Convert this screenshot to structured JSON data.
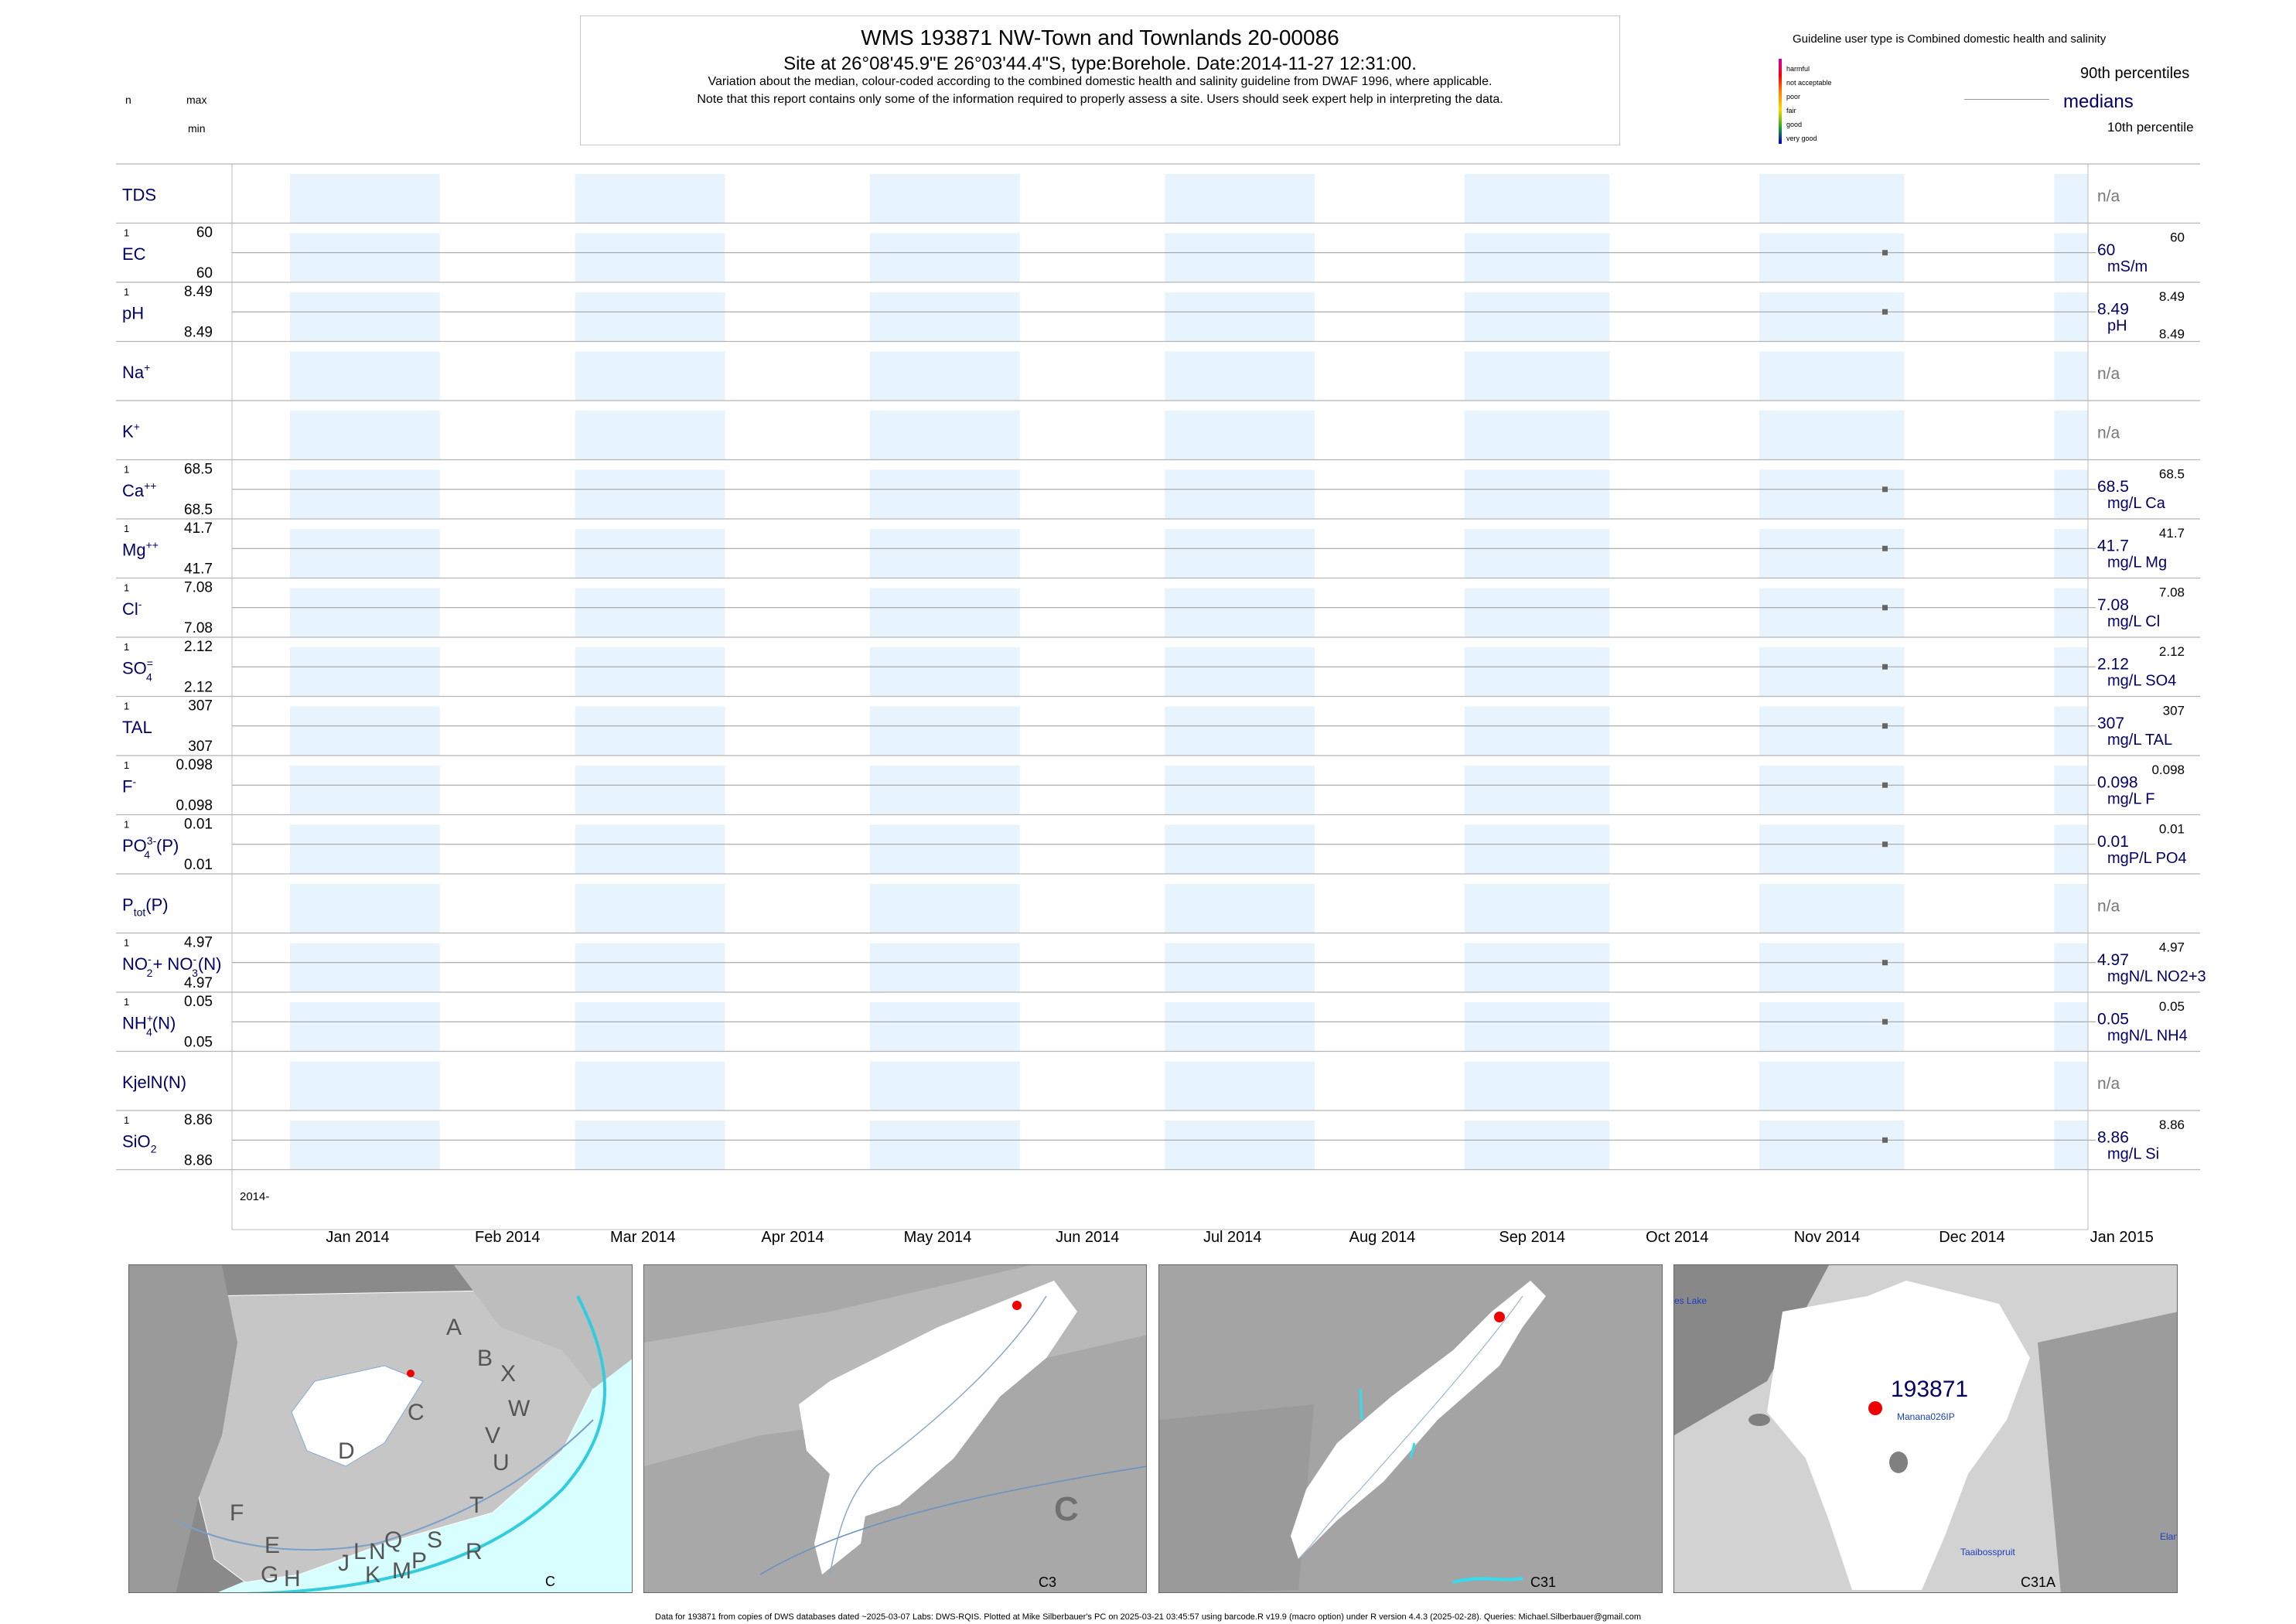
{
  "header": {
    "title": "WMS 193871  NW-Town and Townlands 20-00086",
    "subtitle": "Site at 26°08'45.9\"E 26°03'44.4\"S, type:Borehole. Date:2014-11-27 12:31:00.",
    "note1": "Variation about the median,  colour-coded according to the combined domestic health and salinity guideline from DWAF 1996, where applicable.",
    "note2": "Note that this report contains only some of the information required to properly assess a site. Users should seek expert help in interpreting the data."
  },
  "left_legend": {
    "n": "n",
    "max": "max",
    "min": "min"
  },
  "guideline": {
    "title": "Guideline user type is Combined domestic health and salinity",
    "levels": [
      {
        "label": "harmful",
        "color": "#cc00aa"
      },
      {
        "label": "not acceptable",
        "color": "#ff0000"
      },
      {
        "label": "poor",
        "color": "#ff8800"
      },
      {
        "label": "fair",
        "color": "#ffd700"
      },
      {
        "label": "good",
        "color": "#22aa22"
      },
      {
        "label": "very good",
        "color": "#0000cc"
      }
    ],
    "p90": "90th percentiles",
    "medians": "medians",
    "p10": "10th percentile"
  },
  "chart_data": {
    "type": "scatter",
    "sample_date": "2014-11-27",
    "x_axis": {
      "start_label": "2014-",
      "ticks": [
        "Jan 2014",
        "Feb 2014",
        "Mar 2014",
        "Apr 2014",
        "May 2014",
        "Jun 2014",
        "Jul 2014",
        "Aug 2014",
        "Sep 2014",
        "Oct 2014",
        "Nov 2014",
        "Dec 2014",
        "Jan 2015"
      ],
      "range": [
        "2013-12-20",
        "2015-01-08"
      ]
    },
    "rows": [
      {
        "name": "TDS",
        "html": "TDS",
        "n": "",
        "max": "",
        "min": "",
        "value": null,
        "median_label": "n/a",
        "unit": "",
        "p90": ""
      },
      {
        "name": "EC",
        "html": "EC",
        "n": "1",
        "max": "60",
        "min": "60",
        "value": 60,
        "median_label": "60",
        "unit": "mS/m",
        "p90": "60"
      },
      {
        "name": "pH",
        "html": "pH",
        "n": "1",
        "max": "8.49",
        "min": "8.49",
        "value": 8.49,
        "median_label": "8.49",
        "unit": "pH",
        "p90": "8.49",
        "p10": "8.49"
      },
      {
        "name": "Na+",
        "html": "Na<tspan font-size='14' dy='-9'>+</tspan>",
        "n": "",
        "max": "",
        "min": "",
        "value": null,
        "median_label": "n/a",
        "unit": "",
        "p90": ""
      },
      {
        "name": "K+",
        "html": "K<tspan font-size='14' dy='-9'>+</tspan>",
        "n": "",
        "max": "",
        "min": "",
        "value": null,
        "median_label": "n/a",
        "unit": "",
        "p90": ""
      },
      {
        "name": "Ca++",
        "html": "Ca<tspan font-size='14' dy='-9'>++</tspan>",
        "n": "1",
        "max": "68.5",
        "min": "68.5",
        "value": 68.5,
        "median_label": "68.5",
        "unit": "mg/L Ca",
        "p90": "68.5"
      },
      {
        "name": "Mg++",
        "html": "Mg<tspan font-size='14' dy='-9'>++</tspan>",
        "n": "1",
        "max": "41.7",
        "min": "41.7",
        "value": 41.7,
        "median_label": "41.7",
        "unit": "mg/L Mg",
        "p90": "41.7"
      },
      {
        "name": "Cl-",
        "html": "Cl<tspan font-size='14' dy='-9'>-</tspan>",
        "n": "1",
        "max": "7.08",
        "min": "7.08",
        "value": 7.08,
        "median_label": "7.08",
        "unit": "mg/L Cl",
        "p90": "7.08"
      },
      {
        "name": "SO4=",
        "html": "SO<tspan font-size='14' dy='-9'>=</tspan><tspan font-size='14' dx='-9' dy='18'>4</tspan>",
        "n": "1",
        "max": "2.12",
        "min": "2.12",
        "value": 2.12,
        "median_label": "2.12",
        "unit": "mg/L SO4",
        "p90": "2.12"
      },
      {
        "name": "TAL",
        "html": "TAL",
        "n": "1",
        "max": "307",
        "min": "307",
        "value": 307,
        "median_label": "307",
        "unit": "mg/L TAL",
        "p90": "307"
      },
      {
        "name": "F-",
        "html": "F<tspan font-size='14' dy='-9'>-</tspan>",
        "n": "1",
        "max": "0.098",
        "min": "0.098",
        "value": 0.098,
        "median_label": "0.098",
        "unit": "mg/L F",
        "p90": "0.098"
      },
      {
        "name": "PO43-(P)",
        "html": "PO<tspan font-size='14' dy='-9'>3-</tspan><tspan font-size='14' dx='-16' dy='18'>4</tspan><tspan dx='8' dy='-9'>(P)</tspan>",
        "n": "1",
        "max": "0.01",
        "min": "0.01",
        "value": 0.01,
        "median_label": "0.01",
        "unit": "mgP/L PO4",
        "p90": "0.01"
      },
      {
        "name": "Ptot(P)",
        "html": "P<tspan font-size='14' dy='7'>tot</tspan><tspan dy='-7'>(P)</tspan>",
        "n": "",
        "max": "",
        "min": "",
        "value": null,
        "median_label": "n/a",
        "unit": "",
        "p90": ""
      },
      {
        "name": "NO2-+NO3-(N)",
        "html": "NO<tspan font-size='14' dy='-9'>-</tspan><tspan font-size='14' dx='-6' dy='18'>2</tspan><tspan dy='-9'>+ NO</tspan><tspan font-size='14' dy='-9'>-</tspan><tspan font-size='14' dx='-6' dy='18'>3</tspan><tspan dy='-9'>(N)</tspan>",
        "n": "1",
        "max": "4.97",
        "min": "4.97",
        "value": 4.97,
        "median_label": "4.97",
        "unit": "mgN/L NO2+3",
        "p90": "4.97"
      },
      {
        "name": "NH4+(N)",
        "html": "NH<tspan font-size='14' dy='-9'>+</tspan><tspan font-size='14' dx='-9' dy='18'>4</tspan><tspan dy='-9'>(N)</tspan>",
        "n": "1",
        "max": "0.05",
        "min": "0.05",
        "value": 0.05,
        "median_label": "0.05",
        "unit": "mgN/L NH4",
        "p90": "0.05"
      },
      {
        "name": "KjelN(N)",
        "html": "KjelN(N)",
        "n": "",
        "max": "",
        "min": "",
        "value": null,
        "median_label": "n/a",
        "unit": "",
        "p90": ""
      },
      {
        "name": "SiO2",
        "html": "SiO<tspan font-size='14' dy='7'>2</tspan>",
        "n": "1",
        "max": "8.86",
        "min": "8.86",
        "value": 8.86,
        "median_label": "8.86",
        "unit": "mg/L Si",
        "p90": "8.86"
      }
    ]
  },
  "maps": [
    {
      "caption": "C",
      "region_letters": [
        "A",
        "B",
        "X",
        "W",
        "C",
        "V",
        "U",
        "D",
        "T",
        "F",
        "E",
        "S",
        "R",
        "Q",
        "N",
        "L",
        "J",
        "P",
        "M",
        "K",
        "H",
        "G"
      ]
    },
    {
      "caption": "C3",
      "big_letter": "C"
    },
    {
      "caption": "C31"
    },
    {
      "caption": "C31A",
      "site_label": "193871",
      "point_label": "Manana026IP",
      "place_labels": [
        "es Lake",
        "Taaibosspruit",
        "Elan"
      ]
    }
  ],
  "footer": "Data for 193871 from copies of DWS databases dated ~2025-03-07 Labs: DWS-RQIS. Plotted at Mike Silberbauer's PC on 2025-03-21 03:45:57 using barcode.R v19.9 (macro option) under R version 4.4.3 (2025-02-28). Queries: Michael.Silberbauer@gmail.com",
  "colors": {
    "panel_blue": "#e8f4fd",
    "label_navy": "#000066",
    "na_gray": "#777777",
    "median_gray": "#666666"
  }
}
